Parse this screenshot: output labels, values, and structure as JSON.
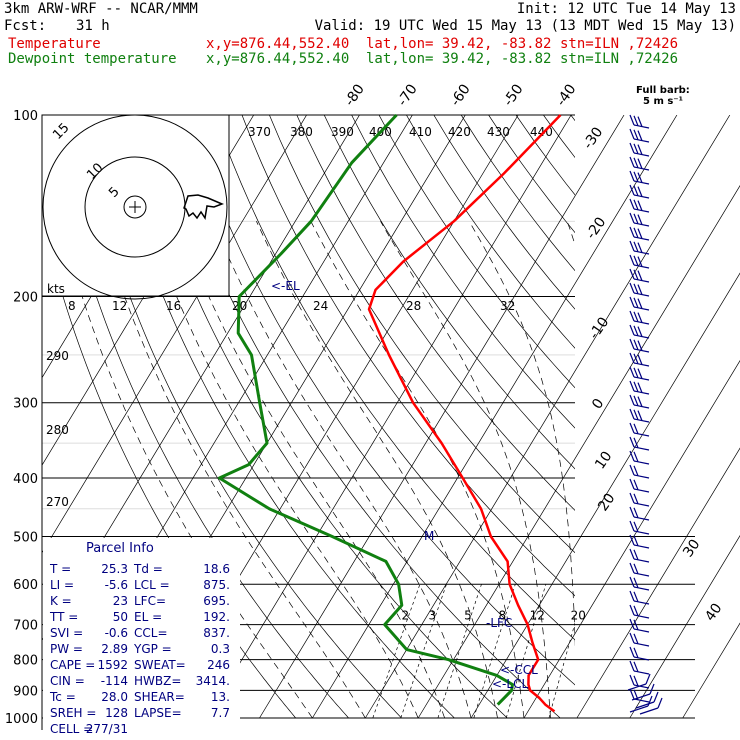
{
  "header": {
    "model": "3km ARW-WRF -- NCAR/MMM",
    "init": "Init: 12 UTC Tue 14 May 13",
    "fcst_label": "Fcst:",
    "fcst_value": "31 h",
    "valid": "Valid: 19 UTC Wed 15 May 13 (13 MDT Wed 15 May 13)",
    "temp_label": "Temperature",
    "dewp_label": "Dewpoint temperature",
    "xy": "x,y=876.44,552.40",
    "latlon": "lat,lon= 39.42, -83.82",
    "stn": "stn=ILN ,72426"
  },
  "barb_legend": {
    "line1": "Full barb:",
    "line2": "5 m s⁻¹"
  },
  "colors": {
    "temperature": "#ff0000",
    "dewpoint": "#108010",
    "text": "#000080",
    "header_red": "#e00000"
  },
  "chart_data": {
    "type": "line",
    "title": "",
    "chart_kind": "skew-T log-p sounding",
    "pressure_levels": [
      "100",
      "200",
      "300",
      "400",
      "500",
      "600",
      "700",
      "800",
      "900",
      "1000"
    ],
    "isotherm_labels": [
      "-80",
      "-70",
      "-60",
      "-50",
      "-40",
      "-30",
      "-20",
      "-10",
      "0",
      "10",
      "20",
      "30",
      "40"
    ],
    "theta_labels": [
      "370",
      "380",
      "390",
      "400",
      "410",
      "420",
      "430",
      "440"
    ],
    "mixing_ratio_labels": [
      "2",
      "3",
      "5",
      "8",
      "12",
      "20"
    ],
    "theta_left_labels": [
      "290",
      "280",
      "270"
    ],
    "hodograph_ring_labels": [
      "5",
      "10",
      "15"
    ],
    "hodograph_speed_labels": [
      "kts",
      "8",
      "12",
      "16",
      "20",
      "24",
      "28",
      "32"
    ],
    "level_markers": {
      "el": "<-EL",
      "lfc": "-LFC",
      "ccl": "<-CCL",
      "lcl": "<-LCL",
      "m": "M"
    },
    "series": [
      {
        "name": "Temperature",
        "points": [
          [
            100,
            -42
          ],
          [
            125,
            -46
          ],
          [
            150,
            -50
          ],
          [
            175,
            -55
          ],
          [
            195,
            -57
          ],
          [
            210,
            -56
          ],
          [
            250,
            -47
          ],
          [
            300,
            -37
          ],
          [
            350,
            -27
          ],
          [
            400,
            -19
          ],
          [
            450,
            -12
          ],
          [
            500,
            -7
          ],
          [
            550,
            -1
          ],
          [
            600,
            2
          ],
          [
            650,
            6
          ],
          [
            700,
            10
          ],
          [
            750,
            13
          ],
          [
            800,
            16
          ],
          [
            850,
            16
          ],
          [
            880,
            17
          ],
          [
            900,
            18
          ],
          [
            925,
            20.5
          ],
          [
            950,
            22.5
          ],
          [
            975,
            25
          ]
        ]
      },
      {
        "name": "Dewpoint temperature",
        "points": [
          [
            100,
            -73
          ],
          [
            120,
            -76
          ],
          [
            150,
            -77
          ],
          [
            170,
            -79
          ],
          [
            200,
            -82
          ],
          [
            230,
            -78
          ],
          [
            250,
            -73
          ],
          [
            300,
            -66
          ],
          [
            350,
            -60
          ],
          [
            380,
            -61
          ],
          [
            400,
            -65
          ],
          [
            450,
            -52
          ],
          [
            500,
            -37
          ],
          [
            550,
            -24
          ],
          [
            600,
            -19
          ],
          [
            650,
            -16
          ],
          [
            700,
            -17
          ],
          [
            770,
            -10
          ],
          [
            800,
            -1
          ],
          [
            850,
            10
          ],
          [
            880,
            14
          ],
          [
            900,
            14.5
          ],
          [
            925,
            14
          ],
          [
            950,
            13.5
          ]
        ]
      }
    ]
  },
  "parcel_info": {
    "title": "Parcel Info",
    "rows": [
      [
        "T  =",
        "25.3",
        "Td =",
        "18.6"
      ],
      [
        "LI =",
        "-5.6",
        "LCL =",
        "875."
      ],
      [
        "K  =",
        "23",
        "LFC=",
        "695."
      ],
      [
        "TT =",
        "50",
        "EL =",
        "192."
      ],
      [
        "SVI =",
        "-0.6",
        "CCL=",
        "837."
      ],
      [
        "PW =",
        "2.89",
        "YGP =",
        "0.3"
      ],
      [
        "CAPE =",
        "1592",
        "SWEAT=",
        "246"
      ],
      [
        "CIN =",
        "-114",
        "HWBZ=",
        "3414."
      ],
      [
        "Tc =",
        "28.0",
        "SHEAR=",
        "13."
      ],
      [
        "SREH =",
        "128",
        "LAPSE=",
        "7.7"
      ],
      [
        "CELL =",
        "277/31",
        "",
        ""
      ]
    ]
  }
}
